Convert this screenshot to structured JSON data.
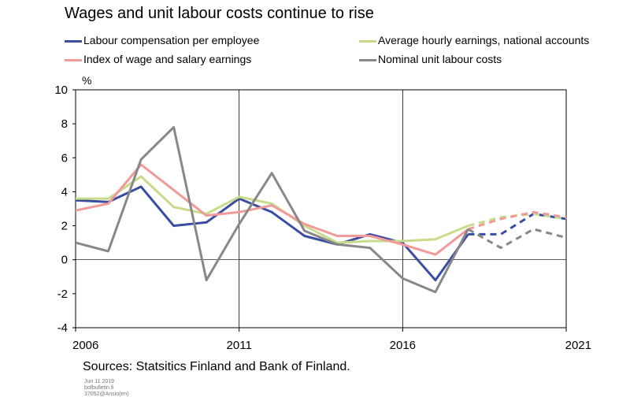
{
  "title": "Wages and unit labour costs continue to rise",
  "sources": "Sources: Statsitics Finland and Bank of Finland.",
  "meta": [
    "Jun 11 2019",
    "bofbulletin.fi",
    "37052@Ansio(en)"
  ],
  "chart_data": {
    "type": "line",
    "ylabel": "%",
    "xlim": [
      2006,
      2021
    ],
    "ylim": [
      -4,
      10
    ],
    "yticks": [
      "10",
      "8",
      "6",
      "4",
      "2",
      "0",
      "-2",
      "-4"
    ],
    "xticks": [
      "2006",
      "2011",
      "2016",
      "2021"
    ],
    "grid": "vertical lines at 2011 and 2016",
    "legend": "top, two columns",
    "forecast_from": 2018,
    "x": [
      2006,
      2007,
      2008,
      2009,
      2010,
      2011,
      2012,
      2013,
      2014,
      2015,
      2016,
      2017,
      2018,
      2019,
      2020,
      2021
    ],
    "series": [
      {
        "name": "Labour compensation per employee",
        "color": "#3b4da0",
        "values": [
          3.5,
          3.4,
          4.3,
          2.0,
          2.2,
          3.6,
          2.8,
          1.4,
          0.9,
          1.5,
          1.0,
          -1.2,
          1.5,
          1.5,
          2.7,
          2.4
        ]
      },
      {
        "name": "Average hourly earnings, national accounts",
        "color": "#c6dc8a",
        "values": [
          3.6,
          3.6,
          4.9,
          3.1,
          2.7,
          3.7,
          3.3,
          2.0,
          1.0,
          1.1,
          1.1,
          1.2,
          2.0,
          2.5,
          2.7,
          2.4
        ]
      },
      {
        "name": "Index of wage and salary earnings",
        "color": "#f09a9a",
        "values": [
          2.9,
          3.3,
          5.6,
          4.1,
          2.6,
          2.8,
          3.2,
          2.1,
          1.4,
          1.4,
          0.9,
          0.3,
          1.8,
          2.4,
          2.8,
          2.5
        ]
      },
      {
        "name": "Nominal unit labour costs",
        "color": "#888888",
        "values": [
          1.0,
          0.5,
          5.9,
          7.8,
          -1.2,
          2.1,
          5.1,
          1.7,
          0.9,
          0.7,
          -1.1,
          -1.9,
          1.8,
          0.7,
          1.8,
          1.3
        ]
      }
    ]
  }
}
